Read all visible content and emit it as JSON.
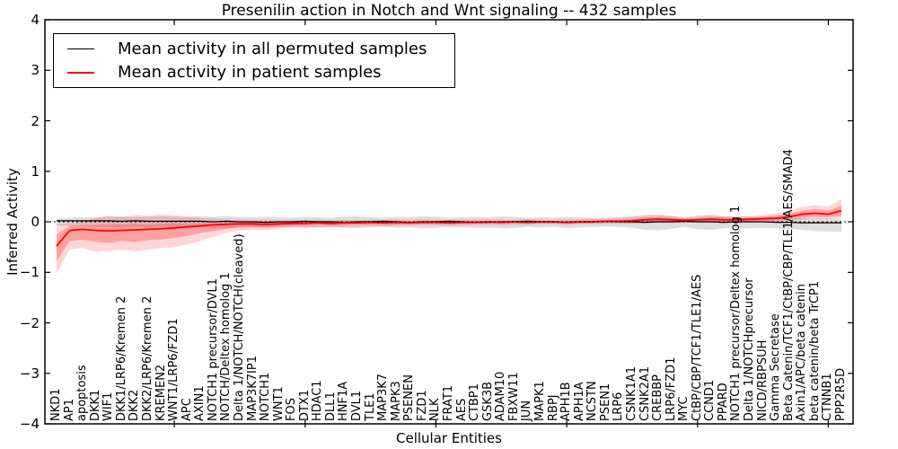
{
  "chart_data": {
    "type": "line",
    "title": "Presenilin action in Notch and Wnt signaling -- 432 samples",
    "xlabel": "Cellular Entities",
    "ylabel": "Inferred Activity",
    "ylim": [
      -4,
      4
    ],
    "yticks": [
      4,
      3,
      2,
      1,
      0,
      -1,
      -2,
      -3,
      -4
    ],
    "ytick_labels": [
      "4",
      "3",
      "2",
      "1",
      "0",
      "−1",
      "−2",
      "−3",
      "−4"
    ],
    "x_major_ticks": [
      10,
      20,
      30,
      40,
      50,
      60
    ],
    "grid": false,
    "legend_position": "upper left",
    "zero_line": {
      "style": "dotted",
      "color": "#000000",
      "y": 0
    },
    "background": "#ffffff",
    "categories": [
      "NKD1",
      "AP1",
      "apoptosis",
      "DKK1",
      "WIF1",
      "DKK1/LRP6/Kremen 2",
      "DKK2",
      "DKK2/LRP6/Kremen 2",
      "KREMEN2",
      "WNT1/LRP6/FZD1",
      "APC",
      "AXIN1",
      "NOTCH1 precursor/DVL1",
      "NOTCH/Deltex homolog 1",
      "Delta 1/NOTCH/NOTCH(cleaved)",
      "MAP3K7IP1",
      "NOTCH1",
      "WNT1",
      "FOS",
      "DTX1",
      "HDAC1",
      "DLL1",
      "HNF1A",
      "DVL1",
      "TLE1",
      "MAP3K7",
      "MAPK3",
      "PSENEN",
      "FZD1",
      "NLK",
      "FRAT1",
      "AES",
      "CTBP1",
      "GSK3B",
      "ADAM10",
      "FBXW11",
      "JUN",
      "MAPK1",
      "RBPJ",
      "APH1B",
      "APH1A",
      "NCSTN",
      "PSEN1",
      "LRP6",
      "CSNK1A1",
      "CSNK2A1",
      "CREBBP",
      "LRP6/FZD1",
      "MYC",
      "CtBP/CBP/TCF1/TLE1/AES",
      "CCND1",
      "PPARD",
      "NOTCH1 precursor/Deltex homolog 1",
      "Delta 1/NOTCHprecursor",
      "NICD/RBPSUH",
      "Gamma Secretase",
      "Beta Catenin/TCF1/CtBP/CBP/TLE1/AES/SMAD4",
      "Axin1/APC/beta catenin",
      "beta catenin/beta TrCP1",
      "CTNNB1",
      "PPP2R5D"
    ],
    "series": [
      {
        "name": "Mean activity in all permuted samples",
        "color": "#000000",
        "line_width": 1.3,
        "band_color": "rgba(0,0,0,0.13)",
        "values": [
          0.02,
          0.02,
          0.02,
          0.02,
          0.02,
          0.01,
          0.02,
          0.01,
          0.01,
          0.01,
          0.01,
          0.01,
          0.0,
          0.01,
          0.0,
          0.0,
          -0.01,
          0.0,
          0.0,
          0.01,
          0.0,
          0.0,
          -0.01,
          0.0,
          0.0,
          0.01,
          0.0,
          -0.01,
          0.0,
          0.0,
          0.01,
          0.0,
          -0.01,
          -0.01,
          0.0,
          0.0,
          0.01,
          0.0,
          0.0,
          -0.01,
          0.0,
          0.0,
          0.01,
          0.0,
          0.0,
          -0.01,
          0.0,
          0.0,
          0.01,
          0.0,
          0.0,
          -0.01,
          0.0,
          0.0,
          0.0,
          -0.01,
          -0.01,
          -0.02,
          -0.02,
          -0.02,
          -0.02
        ],
        "band_lo": [
          -0.07,
          -0.08,
          -0.09,
          -0.1,
          -0.1,
          -0.11,
          -0.1,
          -0.11,
          -0.1,
          -0.11,
          -0.12,
          -0.11,
          -0.12,
          -0.13,
          -0.12,
          -0.11,
          -0.12,
          -0.11,
          -0.1,
          -0.12,
          -0.11,
          -0.1,
          -0.12,
          -0.13,
          -0.11,
          -0.1,
          -0.12,
          -0.11,
          -0.13,
          -0.12,
          -0.1,
          -0.11,
          -0.12,
          -0.11,
          -0.13,
          -0.12,
          -0.1,
          -0.11,
          -0.1,
          -0.12,
          -0.11,
          -0.1,
          -0.09,
          -0.1,
          -0.12,
          -0.16,
          -0.17,
          -0.14,
          -0.1,
          -0.15,
          -0.16,
          -0.13,
          -0.12,
          -0.13,
          -0.12,
          -0.13,
          -0.14,
          -0.16,
          -0.18,
          -0.19,
          -0.2
        ],
        "band_hi": [
          0.07,
          0.08,
          0.09,
          0.09,
          0.1,
          0.1,
          0.09,
          0.1,
          0.11,
          0.1,
          0.1,
          0.11,
          0.1,
          0.11,
          0.1,
          0.09,
          0.1,
          0.09,
          0.08,
          0.1,
          0.09,
          0.08,
          0.1,
          0.11,
          0.09,
          0.08,
          0.1,
          0.09,
          0.11,
          0.1,
          0.08,
          0.09,
          0.1,
          0.09,
          0.11,
          0.1,
          0.08,
          0.09,
          0.08,
          0.1,
          0.09,
          0.08,
          0.08,
          0.09,
          0.11,
          0.14,
          0.15,
          0.12,
          0.08,
          0.13,
          0.14,
          0.11,
          0.1,
          0.11,
          0.1,
          0.09,
          0.08,
          0.07,
          0.06,
          0.06,
          0.05
        ]
      },
      {
        "name": "Mean activity in patient samples",
        "color": "#ff0000",
        "line_width": 1.8,
        "band_outer_color": "rgba(255,0,0,0.16)",
        "band_inner_color": "rgba(255,0,0,0.25)",
        "values": [
          -0.48,
          -0.17,
          -0.15,
          -0.17,
          -0.18,
          -0.17,
          -0.16,
          -0.15,
          -0.14,
          -0.12,
          -0.1,
          -0.08,
          -0.06,
          -0.05,
          -0.04,
          -0.04,
          -0.05,
          -0.04,
          -0.03,
          -0.03,
          -0.02,
          -0.03,
          -0.02,
          -0.02,
          -0.01,
          -0.02,
          -0.01,
          -0.02,
          -0.01,
          -0.01,
          -0.02,
          -0.01,
          -0.01,
          0.0,
          -0.01,
          0.0,
          -0.01,
          0.0,
          0.0,
          -0.01,
          0.0,
          0.0,
          0.01,
          0.01,
          0.02,
          0.04,
          0.05,
          0.04,
          0.03,
          0.04,
          0.05,
          0.04,
          0.04,
          0.05,
          0.06,
          0.07,
          0.1,
          0.15,
          0.17,
          0.15,
          0.22
        ],
        "band_inner_lo": [
          -0.78,
          -0.38,
          -0.35,
          -0.4,
          -0.42,
          -0.38,
          -0.4,
          -0.36,
          -0.35,
          -0.32,
          -0.28,
          -0.22,
          -0.18,
          -0.14,
          -0.1,
          -0.1,
          -0.11,
          -0.09,
          -0.08,
          -0.07,
          -0.06,
          -0.07,
          -0.06,
          -0.05,
          -0.05,
          -0.06,
          -0.05,
          -0.05,
          -0.04,
          -0.04,
          -0.05,
          -0.04,
          -0.04,
          -0.03,
          -0.04,
          -0.03,
          -0.04,
          -0.03,
          -0.03,
          -0.04,
          -0.03,
          -0.03,
          -0.02,
          -0.02,
          -0.02,
          -0.01,
          0.0,
          -0.01,
          -0.01,
          0.0,
          0.0,
          -0.01,
          0.0,
          0.01,
          0.01,
          0.02,
          0.05,
          0.08,
          0.1,
          0.09,
          0.12
        ],
        "band_inner_hi": [
          -0.25,
          -0.08,
          -0.07,
          -0.06,
          -0.05,
          -0.05,
          -0.04,
          -0.05,
          -0.04,
          -0.03,
          -0.03,
          -0.03,
          -0.02,
          -0.02,
          -0.01,
          0.0,
          0.0,
          0.0,
          0.01,
          0.01,
          0.01,
          0.01,
          0.01,
          0.01,
          0.02,
          0.01,
          0.02,
          0.01,
          0.02,
          0.02,
          0.01,
          0.02,
          0.02,
          0.02,
          0.02,
          0.02,
          0.02,
          0.02,
          0.02,
          0.02,
          0.02,
          0.03,
          0.03,
          0.04,
          0.05,
          0.08,
          0.09,
          0.08,
          0.06,
          0.07,
          0.09,
          0.08,
          0.07,
          0.08,
          0.1,
          0.12,
          0.16,
          0.22,
          0.25,
          0.22,
          0.32
        ],
        "band_outer_lo": [
          -1.03,
          -0.55,
          -0.52,
          -0.6,
          -0.58,
          -0.55,
          -0.58,
          -0.55,
          -0.52,
          -0.5,
          -0.45,
          -0.38,
          -0.3,
          -0.22,
          -0.17,
          -0.16,
          -0.17,
          -0.14,
          -0.12,
          -0.11,
          -0.1,
          -0.11,
          -0.1,
          -0.09,
          -0.08,
          -0.09,
          -0.08,
          -0.08,
          -0.07,
          -0.07,
          -0.08,
          -0.07,
          -0.06,
          -0.06,
          -0.07,
          -0.06,
          -0.06,
          -0.05,
          -0.05,
          -0.06,
          -0.05,
          -0.05,
          -0.04,
          -0.04,
          -0.04,
          -0.03,
          -0.02,
          -0.03,
          -0.02,
          -0.02,
          -0.02,
          -0.03,
          -0.02,
          -0.01,
          0.0,
          0.0,
          0.01,
          0.04,
          0.05,
          0.05,
          0.07
        ],
        "band_outer_hi": [
          -0.05,
          -0.02,
          0.0,
          0.08,
          0.12,
          0.1,
          0.14,
          0.12,
          0.15,
          0.13,
          0.1,
          0.08,
          0.06,
          0.05,
          0.04,
          0.04,
          0.04,
          0.03,
          0.04,
          0.03,
          0.04,
          0.03,
          0.04,
          0.04,
          0.04,
          0.04,
          0.05,
          0.04,
          0.05,
          0.04,
          0.04,
          0.05,
          0.04,
          0.05,
          0.05,
          0.04,
          0.05,
          0.05,
          0.04,
          0.05,
          0.05,
          0.06,
          0.06,
          0.07,
          0.09,
          0.11,
          0.12,
          0.11,
          0.09,
          0.1,
          0.12,
          0.11,
          0.1,
          0.11,
          0.14,
          0.17,
          0.22,
          0.3,
          0.33,
          0.3,
          0.45
        ]
      }
    ]
  }
}
